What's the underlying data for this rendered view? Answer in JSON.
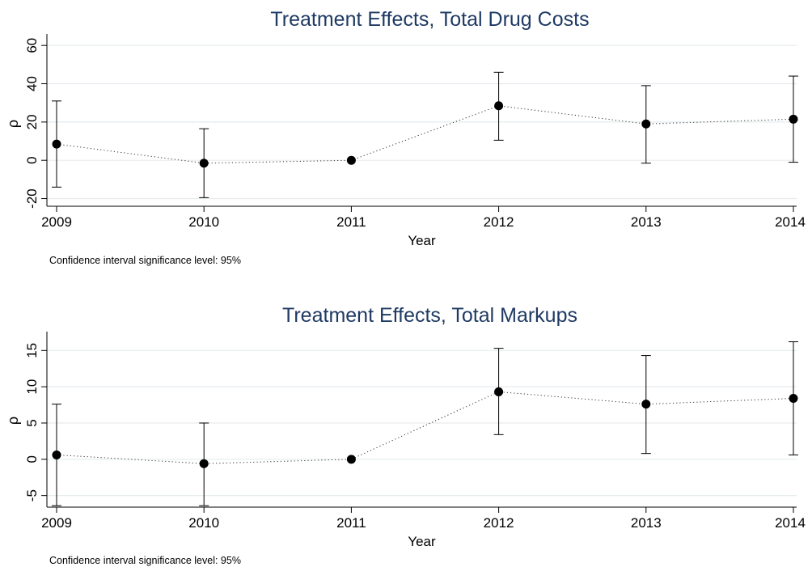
{
  "colors": {
    "title": "#1f3a63",
    "marker": "#000000",
    "grid": "#e6ebee",
    "axis": "#000000",
    "background": "#ffffff"
  },
  "chart_data": [
    {
      "type": "scatter",
      "title": "Treatment Effects, Total Drug Costs",
      "xlabel": "Year",
      "ylabel": "ρ",
      "note": "Confidence interval significance level: 95%",
      "x": [
        2009,
        2010,
        2011,
        2012,
        2013,
        2014
      ],
      "x_tick_labels": [
        "2009",
        "2010",
        "2011",
        "2012",
        "2013",
        "2014"
      ],
      "y_ticks": [
        -20,
        0,
        20,
        40,
        60
      ],
      "y_tick_labels": [
        "-20",
        "0",
        "20",
        "40",
        "60"
      ],
      "ylim": [
        -24,
        66
      ],
      "grid": true,
      "connector": "dotted line",
      "series": [
        {
          "estimate": [
            8.5,
            -1.5,
            0,
            28.5,
            19,
            21.5
          ],
          "ci_lower": [
            -14,
            -19.5,
            0,
            10.5,
            -1.5,
            -1
          ],
          "ci_upper": [
            31,
            16.5,
            0,
            46,
            39,
            44
          ]
        }
      ]
    },
    {
      "type": "scatter",
      "title": "Treatment Effects, Total Markups",
      "xlabel": "Year",
      "ylabel": "ρ",
      "note": "Confidence interval significance level: 95%",
      "x": [
        2009,
        2010,
        2011,
        2012,
        2013,
        2014
      ],
      "x_tick_labels": [
        "2009",
        "2010",
        "2011",
        "2012",
        "2013",
        "2014"
      ],
      "y_ticks": [
        -5,
        0,
        5,
        10,
        15
      ],
      "y_tick_labels": [
        "-5",
        "0",
        "5",
        "10",
        "15"
      ],
      "ylim": [
        -6.6,
        17.6
      ],
      "grid": true,
      "connector": "dotted line",
      "series": [
        {
          "estimate": [
            0.6,
            -0.6,
            0,
            9.3,
            7.6,
            8.4
          ],
          "ci_lower": [
            -6.4,
            -6.4,
            0,
            3.4,
            0.8,
            0.6
          ],
          "ci_upper": [
            7.6,
            5.0,
            0,
            15.3,
            14.3,
            16.2
          ]
        }
      ]
    }
  ]
}
